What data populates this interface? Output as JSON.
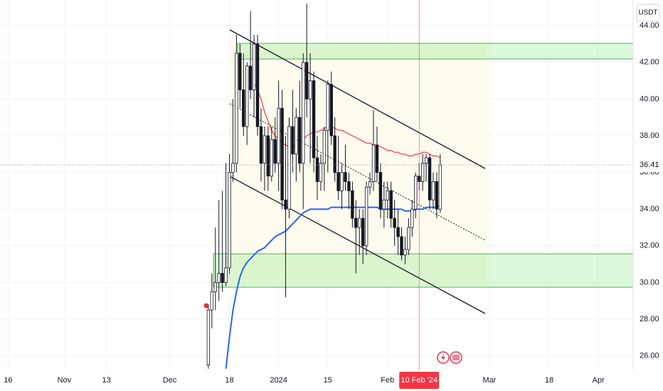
{
  "chart_data": {
    "type": "candlestick",
    "x": [
      0,
      1,
      2,
      3,
      4,
      5,
      6,
      7,
      8,
      9,
      10,
      11,
      12,
      13,
      14,
      15,
      16,
      17,
      18,
      19,
      20,
      21,
      22,
      23,
      24,
      25,
      26,
      27,
      28,
      29,
      30,
      31,
      32,
      33,
      34,
      35,
      36,
      37,
      38,
      39,
      40,
      41,
      42,
      43,
      44,
      45,
      46,
      47,
      48,
      49,
      50,
      51,
      52,
      53,
      54,
      55,
      56,
      57,
      58,
      59,
      60,
      61,
      62,
      63,
      64,
      65,
      66
    ],
    "open": [
      25.5,
      28.5,
      29.5,
      30,
      30.5,
      30,
      30.8,
      36,
      36.5,
      42.5,
      40.5,
      38.5,
      41.8,
      40.5,
      43,
      38.5,
      36.5,
      38,
      35.8,
      37.8,
      36.5,
      39.5,
      34.5,
      34,
      38.5,
      37,
      39,
      36.5,
      42,
      40,
      41,
      36.8,
      35.5,
      36.5,
      38.3,
      40.8,
      38,
      36,
      35,
      36,
      35.5,
      35,
      33.5,
      33,
      33.5,
      32,
      35.2,
      35.5,
      37.5,
      36,
      34,
      34.5,
      35,
      33.5,
      33,
      32.5,
      31.5,
      31.8,
      33,
      34,
      35.8,
      35.5,
      36.5,
      36.8,
      34.5,
      35.5,
      34
    ],
    "high": [
      28.8,
      30.5,
      33,
      34.5,
      35,
      36.5,
      37,
      40,
      43.5,
      43,
      42.5,
      42,
      44.8,
      43.5,
      43.5,
      39.5,
      38.5,
      38.5,
      38.5,
      39,
      41,
      40.5,
      38,
      39,
      40.5,
      39.5,
      41,
      42.5,
      45.2,
      42.5,
      41.5,
      38,
      37,
      38.5,
      41,
      41.5,
      39,
      38,
      36.5,
      37.5,
      36,
      35.5,
      34.5,
      34,
      34,
      35.5,
      36,
      39.4,
      38.5,
      36.5,
      35.5,
      35.5,
      35.5,
      34.5,
      34,
      33,
      32.5,
      33.5,
      34.5,
      36,
      36.5,
      37,
      37,
      37,
      36,
      36,
      37
    ],
    "low": [
      25.3,
      27.5,
      28.5,
      29,
      29.5,
      29.8,
      30.5,
      35.5,
      36,
      39.5,
      38,
      37.5,
      40,
      39,
      38,
      35.5,
      35,
      35,
      35.5,
      36,
      35,
      34,
      29.2,
      33.5,
      36,
      35.5,
      36,
      34,
      39,
      36.5,
      36,
      34.5,
      35,
      35,
      36,
      37.5,
      35.5,
      34.5,
      34,
      35,
      34,
      33,
      30.5,
      31.5,
      31,
      31.5,
      34.8,
      35,
      35.5,
      33.5,
      33,
      33.5,
      33,
      32,
      31.5,
      31.2,
      31,
      31.5,
      32.5,
      33.5,
      35,
      35,
      35.5,
      34,
      34,
      33.5,
      33.8
    ],
    "close": [
      28.5,
      29.5,
      30,
      30.5,
      30,
      30.8,
      36,
      36.5,
      42.5,
      40.5,
      38.5,
      41.8,
      40.5,
      43,
      38.5,
      36.5,
      38,
      35.8,
      37.8,
      36.5,
      39.5,
      34.5,
      34,
      38.5,
      37,
      39,
      36.5,
      42,
      40,
      41,
      36.8,
      35.5,
      36.5,
      38.3,
      40.8,
      38,
      36,
      35,
      36,
      35.5,
      35,
      33.5,
      33,
      33.5,
      32,
      35.2,
      35.5,
      37.5,
      36,
      34,
      34.5,
      35,
      33.5,
      33,
      32.5,
      31.5,
      31.8,
      33,
      34,
      35.8,
      35.5,
      36.5,
      36.8,
      34.5,
      35.5,
      34,
      36.41
    ],
    "up_color": "#ffffff",
    "down_color": "#131722",
    "outline_color": "#131722",
    "lines": [
      {
        "color": "#f23645",
        "values": [
          null,
          null,
          null,
          null,
          null,
          null,
          null,
          null,
          null,
          null,
          null,
          null,
          null,
          41.0,
          40.5,
          40.0,
          39.3,
          38.8,
          38.3,
          38.0,
          37.8,
          37.6,
          37.5,
          37.4,
          37.4,
          37.5,
          37.6,
          37.8,
          38.0,
          38.1,
          38.2,
          38.2,
          38.3,
          38.4,
          38.5,
          38.5,
          38.4,
          38.3,
          38.3,
          38.2,
          38.1,
          38.0,
          37.9,
          37.8,
          37.7,
          37.6,
          37.6,
          37.5,
          37.5,
          37.4,
          37.3,
          37.2,
          37.2,
          37.1,
          37.1,
          37.0,
          37.0,
          36.9,
          36.9,
          37.0,
          37.0,
          37.1,
          37.1,
          37.0,
          36.9,
          36.9,
          36.8
        ]
      },
      {
        "color": "#2962ff",
        "values": [
          null,
          null,
          null,
          null,
          null,
          25.3,
          27.0,
          28.5,
          29.5,
          30.3,
          30.8,
          31.1,
          31.3,
          31.5,
          31.7,
          31.8,
          31.9,
          32.1,
          32.3,
          32.5,
          32.6,
          32.7,
          32.8,
          33.0,
          33.2,
          33.4,
          33.6,
          33.8,
          33.9,
          34.0,
          34.0,
          34.0,
          34.0,
          34.0,
          34.0,
          34.1,
          34.1,
          34.1,
          34.1,
          34.1,
          34.1,
          34.1,
          34.1,
          34.1,
          34.1,
          34.1,
          34.1,
          34.1,
          34.1,
          34.0,
          34.0,
          34.0,
          34.0,
          34.0,
          34.0,
          34.0,
          33.9,
          33.9,
          33.9,
          34.0,
          34.0,
          34.0,
          34.1,
          34.1,
          34.1,
          34.1,
          34.2
        ]
      }
    ],
    "xlim": [
      -59.3,
      120.9
    ],
    "ylim": [
      25.25,
      45.4
    ],
    "yticks": [
      {
        "value": 44,
        "label": "44.00"
      },
      {
        "value": 42,
        "label": "42.00"
      },
      {
        "value": 40,
        "label": "40.00"
      },
      {
        "value": 38,
        "label": "38.00"
      },
      {
        "value": 36,
        "label": "36.00"
      },
      {
        "value": 34,
        "label": "34.00"
      },
      {
        "value": 32,
        "label": "32.00"
      },
      {
        "value": 30,
        "label": "30.00"
      },
      {
        "value": 28,
        "label": "28.00"
      },
      {
        "value": 26,
        "label": "26.00"
      }
    ],
    "xticks": [
      {
        "value": -57,
        "label": "16"
      },
      {
        "value": -41,
        "label": "Nov"
      },
      {
        "value": -29,
        "label": "13"
      },
      {
        "value": -11,
        "label": "Dec"
      },
      {
        "value": 6,
        "label": "18"
      },
      {
        "value": 20,
        "label": "2024"
      },
      {
        "value": 34,
        "label": "15"
      },
      {
        "value": 51,
        "label": "Feb"
      },
      {
        "value": 80,
        "label": "Mar"
      },
      {
        "value": 97,
        "label": "18"
      },
      {
        "value": 111,
        "label": "Apr"
      }
    ],
    "crosshair": {
      "value": 60,
      "label": "10 Feb '24"
    },
    "last_price": 36.41,
    "currency": "USDT",
    "grid": true
  }
}
